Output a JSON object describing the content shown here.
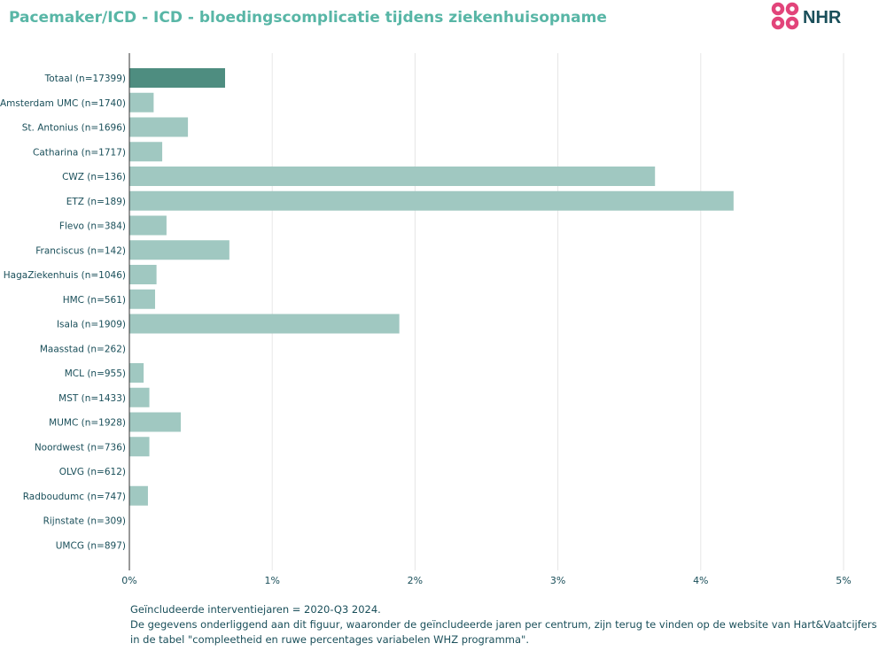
{
  "title": "Pacemaker/ICD - ICD - bloedingscomplicatie tijdens ziekenhuisopname",
  "logo_text": "NHR",
  "colors": {
    "highlight": "#4e8d80",
    "bar": "#a0c8c1",
    "title": "#58b6a6",
    "text": "#1a4f5a",
    "logo_pink": "#e2447a"
  },
  "chart_data": {
    "type": "bar",
    "orientation": "horizontal",
    "categories": [
      "Totaal (n=17399)",
      "Amsterdam UMC (n=1740)",
      "St. Antonius (n=1696)",
      "Catharina (n=1717)",
      "CWZ (n=136)",
      "ETZ (n=189)",
      "Flevo (n=384)",
      "Franciscus (n=142)",
      "HagaZiekenhuis (n=1046)",
      "HMC (n=561)",
      "Isala (n=1909)",
      "Maasstad (n=262)",
      "MCL (n=955)",
      "MST (n=1433)",
      "MUMC (n=1928)",
      "Noordwest (n=736)",
      "OLVG (n=612)",
      "Radboudumc (n=747)",
      "Rijnstate (n=309)",
      "UMCG (n=897)"
    ],
    "values": [
      0.67,
      0.17,
      0.41,
      0.23,
      3.68,
      4.23,
      0.26,
      0.7,
      0.19,
      0.18,
      1.89,
      0,
      0.1,
      0.14,
      0.36,
      0.14,
      0,
      0.13,
      0,
      0
    ],
    "highlight_index": 0,
    "xlim": [
      0,
      5
    ],
    "xticks": [
      "0%",
      "1%",
      "2%",
      "3%",
      "4%",
      "5%"
    ],
    "grid": true
  },
  "footer": {
    "line1": "Geïncludeerde interventiejaren = 2020-Q3 2024.",
    "line2": "De gegevens onderliggend aan dit figuur, waaronder de geïncludeerde jaren per centrum, zijn terug te vinden op de website van Hart&Vaatcijfers",
    "line3": "in de tabel \"compleetheid en ruwe percentages variabelen WHZ programma\"."
  }
}
